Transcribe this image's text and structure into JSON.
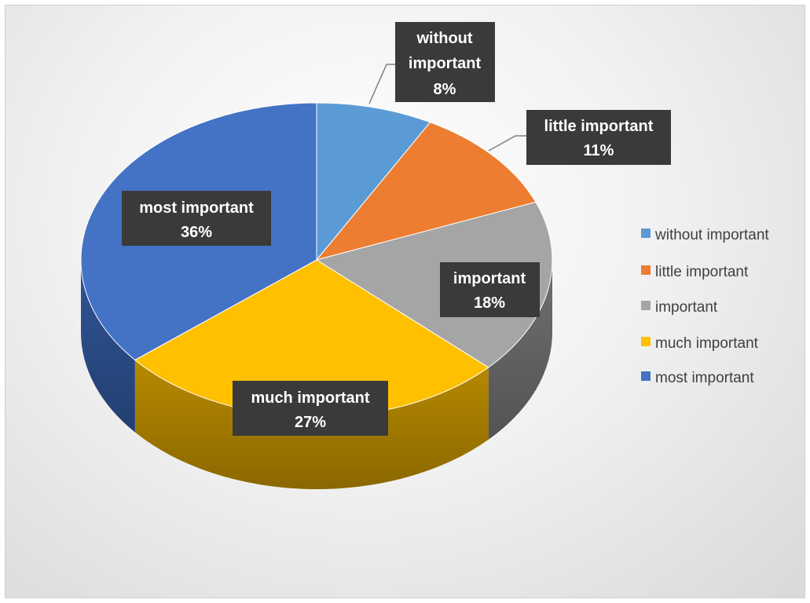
{
  "chart_data": {
    "type": "pie",
    "style": "3d",
    "categories": [
      "without important",
      "little important",
      "important",
      "much important",
      "most important"
    ],
    "values": [
      8,
      11,
      18,
      27,
      36
    ],
    "value_labels": [
      "8%",
      "11%",
      "18%",
      "27%",
      "36%"
    ],
    "colors": [
      "#5B9BD5",
      "#ED7D31",
      "#A5A5A5",
      "#FFC000",
      "#4472C4"
    ],
    "side_colors": [
      "#3f7ab0",
      "#b35a1f",
      "#6f6f6f",
      "#b88a00",
      "#2f5496"
    ],
    "legend_position": "right"
  }
}
